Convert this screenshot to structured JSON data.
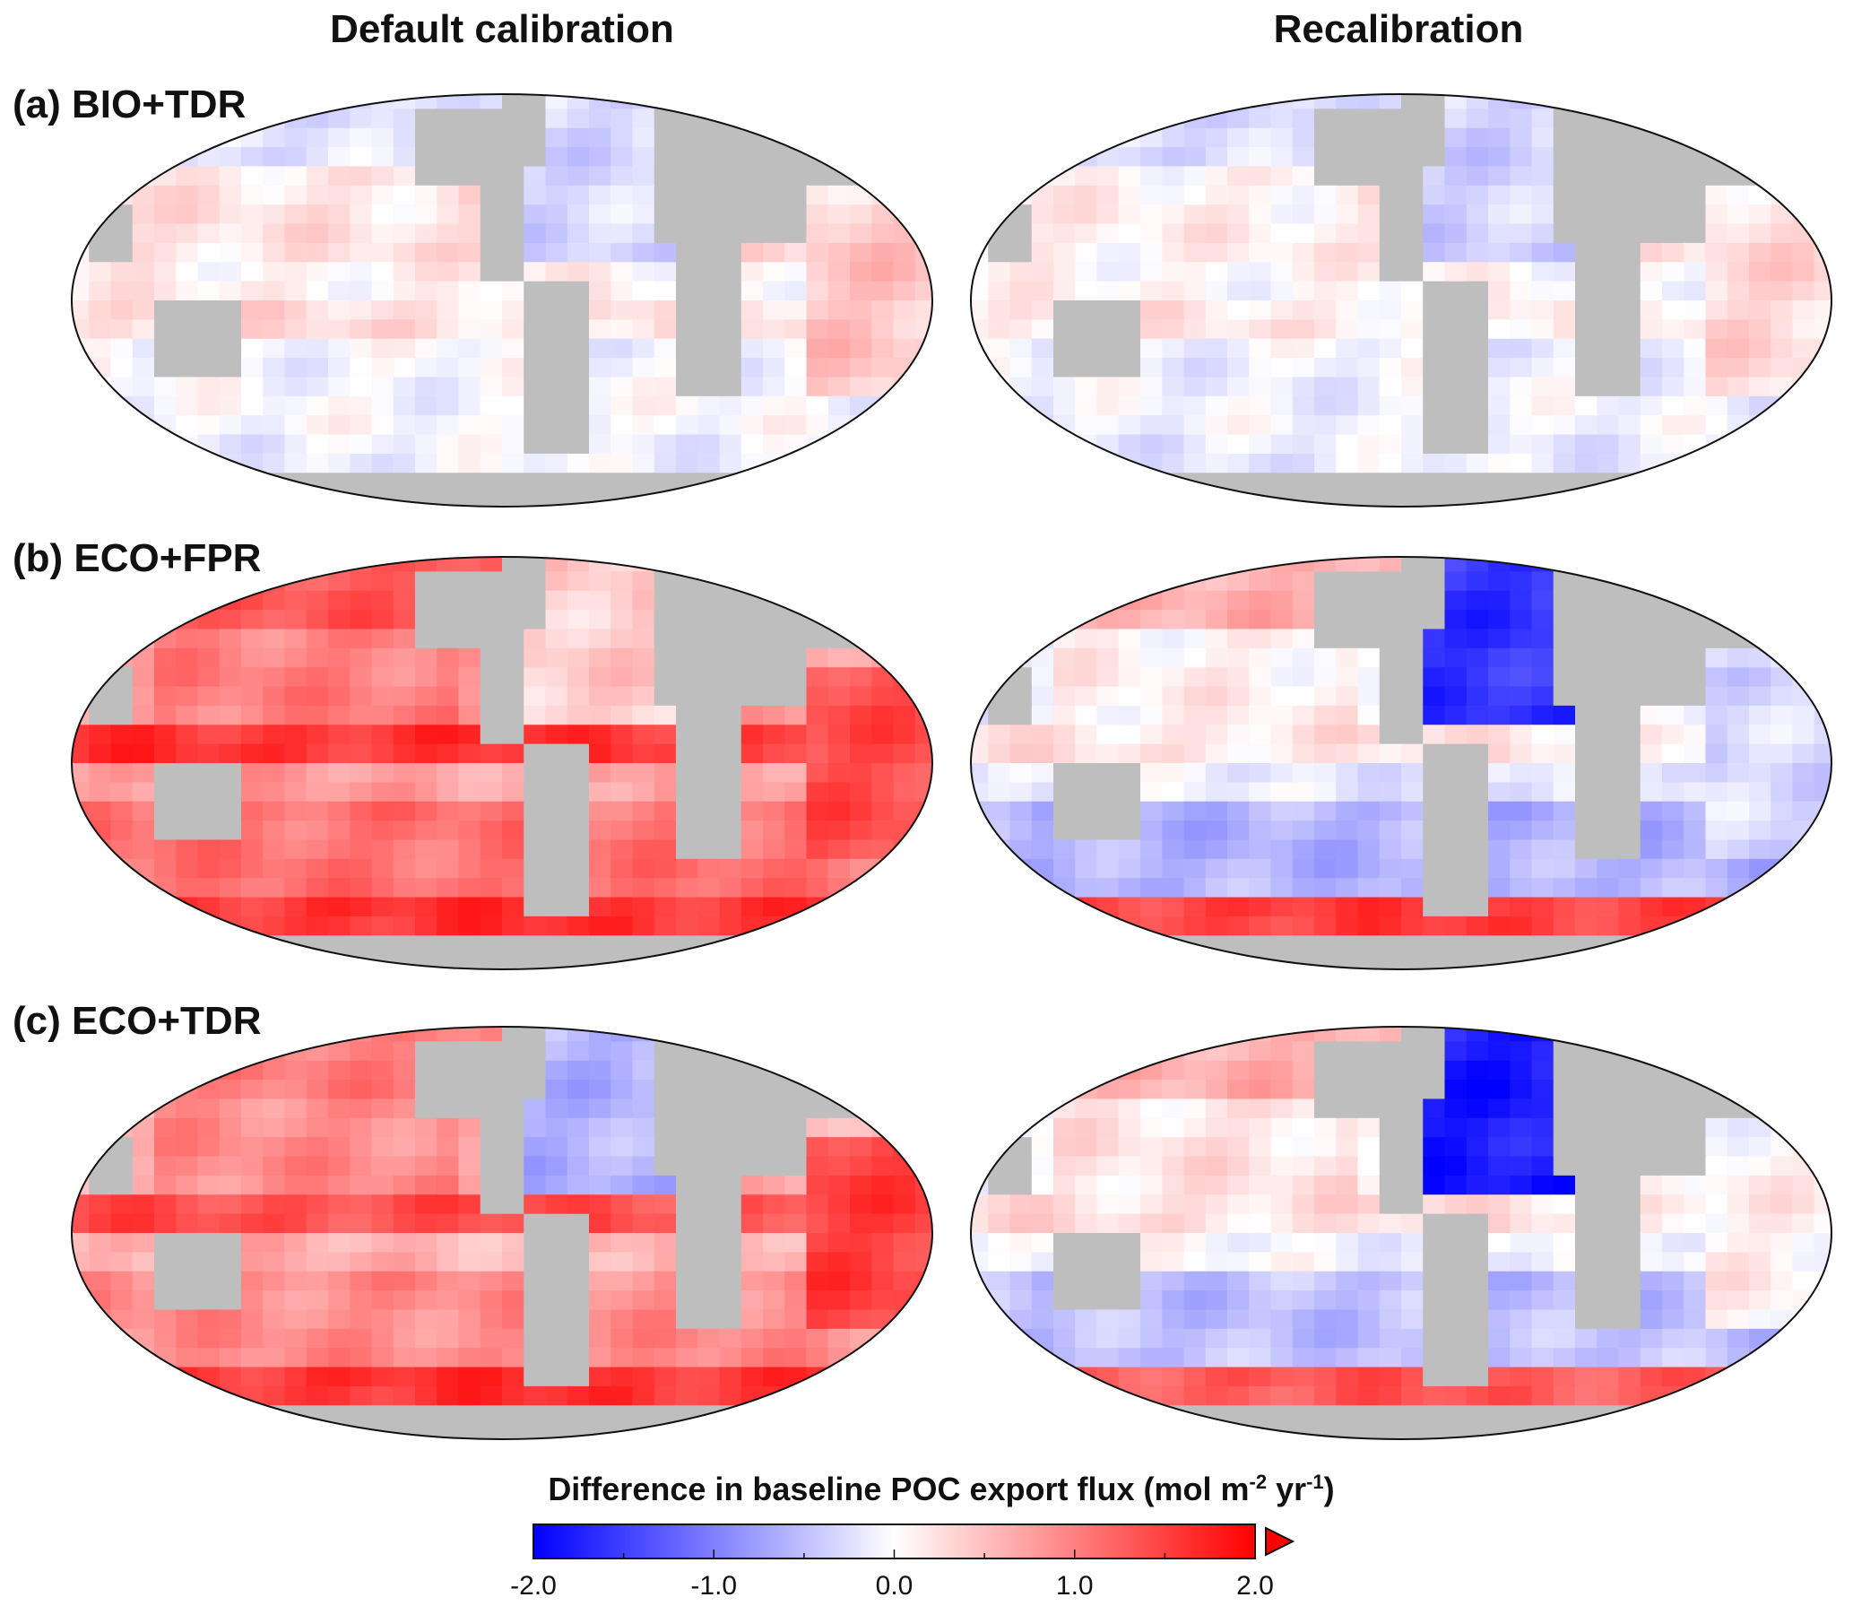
{
  "columns": [
    "Default calibration",
    "Recalibration"
  ],
  "panels": [
    {
      "label": "(a) BIO+TDR",
      "default": {
        "base": 0.25,
        "north": -0.25,
        "atl": -0.3,
        "pacN": 0.2,
        "south": -0.05,
        "so": -0.1,
        "ind": 0.45,
        "eq": 0.1
      },
      "recal": {
        "base": 0.15,
        "north": -0.3,
        "atl": -0.35,
        "pacN": 0.1,
        "south": -0.1,
        "so": -0.15,
        "ind": 0.3,
        "eq": 0.05
      }
    },
    {
      "label": "(b) ECO+FPR",
      "default": {
        "base": 0.75,
        "north": 1.3,
        "atl": 0.4,
        "pacN": 1.0,
        "south": 1.1,
        "so": 1.6,
        "ind": 1.4,
        "eq": 1.6
      },
      "recal": {
        "base": -0.15,
        "north": 0.6,
        "atl": -1.6,
        "pacN": 0.1,
        "south": -0.6,
        "so": 1.5,
        "ind": -0.3,
        "eq": 0.2
      }
    },
    {
      "label": "(c) ECO+TDR",
      "default": {
        "base": 0.6,
        "north": 1.0,
        "atl": -0.6,
        "pacN": 0.9,
        "south": 0.9,
        "so": 1.6,
        "ind": 1.5,
        "eq": 1.4
      },
      "recal": {
        "base": -0.05,
        "north": 0.6,
        "atl": -1.8,
        "pacN": 0.2,
        "south": -0.5,
        "so": 1.3,
        "ind": 0.1,
        "eq": 0.25
      }
    }
  ],
  "colorbar": {
    "title_main": "Difference in baseline POC export flux (mol m",
    "title_sup1": "-2",
    "title_mid": " yr",
    "title_sup2": "-1",
    "title_end": ")",
    "min": -2.0,
    "max": 2.0,
    "tick_labels": [
      "-2.0",
      "-1.0",
      "0.0",
      "1.0",
      "2.0"
    ],
    "tick_values": [
      -2.0,
      -1.0,
      0.0,
      1.0,
      2.0
    ],
    "extend": "max",
    "colors": {
      "low": "#0000ff",
      "mid": "#ffffff",
      "high": "#ff0000",
      "land": "#bebebe"
    }
  }
}
